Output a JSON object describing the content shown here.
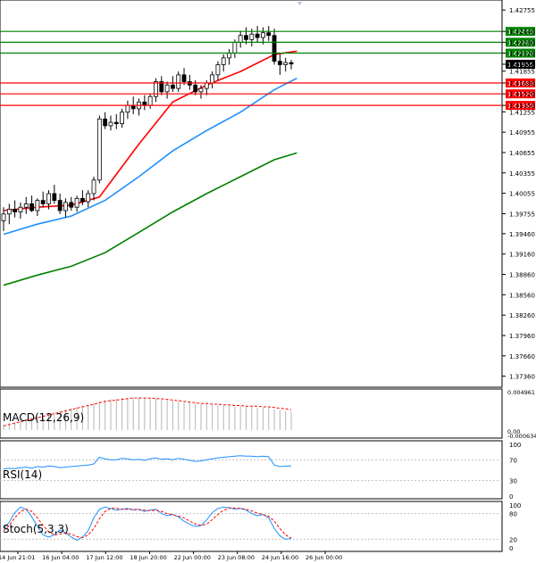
{
  "chart_data": {
    "type": "candlestick",
    "title": "",
    "price_axis": {
      "ticks": [
        "1.42755",
        "1.42440",
        "1.42280",
        "1.42120",
        "1.41956",
        "1.41855",
        "1.41680",
        "1.41520",
        "1.41350",
        "1.41255",
        "1.40955",
        "1.40655",
        "1.40355",
        "1.40055",
        "1.39755",
        "1.39460",
        "1.39160",
        "1.38860",
        "1.38560",
        "1.38260",
        "1.37960",
        "1.37660",
        "1.37360"
      ],
      "range": [
        1.3725,
        1.4285
      ]
    },
    "time_axis": {
      "labels": [
        "14 Jun 21:01",
        "16 Jun 04:00",
        "17 Jun 12:00",
        "18 Jun 20:00",
        "22 Jun 00:00",
        "23 Jun 08:00",
        "24 Jun 16:00",
        "26 Jun 00:00"
      ]
    },
    "candles": [
      [
        1.3965,
        1.3985,
        1.395,
        1.3975
      ],
      [
        1.3975,
        1.399,
        1.396,
        1.3982
      ],
      [
        1.3982,
        1.3995,
        1.397,
        1.3978
      ],
      [
        1.3978,
        1.3992,
        1.3968,
        1.3985
      ],
      [
        1.3985,
        1.4,
        1.3975,
        1.399
      ],
      [
        1.399,
        1.4002,
        1.3978,
        1.398
      ],
      [
        1.398,
        1.3998,
        1.3972,
        1.3995
      ],
      [
        1.3995,
        1.4008,
        1.3985,
        1.399
      ],
      [
        1.399,
        1.401,
        1.3982,
        1.4005
      ],
      [
        1.4005,
        1.4018,
        1.399,
        1.3995
      ],
      [
        1.3995,
        1.4005,
        1.3975,
        1.398
      ],
      [
        1.398,
        1.3998,
        1.397,
        1.3992
      ],
      [
        1.3992,
        1.4,
        1.398,
        1.3985
      ],
      [
        1.3985,
        1.4002,
        1.3978,
        1.3998
      ],
      [
        1.3998,
        1.401,
        1.3988,
        1.3993
      ],
      [
        1.3993,
        1.401,
        1.3985,
        1.4005
      ],
      [
        1.4005,
        1.403,
        1.3995,
        1.4025
      ],
      [
        1.4025,
        1.412,
        1.402,
        1.4115
      ],
      [
        1.4115,
        1.4125,
        1.41,
        1.4105
      ],
      [
        1.4105,
        1.412,
        1.4098,
        1.411
      ],
      [
        1.411,
        1.4122,
        1.41,
        1.4108
      ],
      [
        1.4108,
        1.413,
        1.4102,
        1.4125
      ],
      [
        1.4125,
        1.4142,
        1.4115,
        1.4135
      ],
      [
        1.4135,
        1.4148,
        1.4122,
        1.413
      ],
      [
        1.413,
        1.4145,
        1.412,
        1.414
      ],
      [
        1.414,
        1.415,
        1.4128,
        1.4135
      ],
      [
        1.4135,
        1.4152,
        1.413,
        1.4148
      ],
      [
        1.4148,
        1.4175,
        1.414,
        1.417
      ],
      [
        1.417,
        1.4178,
        1.415,
        1.4155
      ],
      [
        1.4155,
        1.417,
        1.4145,
        1.4165
      ],
      [
        1.4165,
        1.4178,
        1.4155,
        1.416
      ],
      [
        1.416,
        1.4185,
        1.4155,
        1.418
      ],
      [
        1.418,
        1.419,
        1.4165,
        1.417
      ],
      [
        1.417,
        1.418,
        1.4158,
        1.4165
      ],
      [
        1.4165,
        1.4172,
        1.415,
        1.4155
      ],
      [
        1.4155,
        1.4165,
        1.4145,
        1.416
      ],
      [
        1.416,
        1.4172,
        1.415,
        1.4168
      ],
      [
        1.4168,
        1.4185,
        1.416,
        1.418
      ],
      [
        1.418,
        1.42,
        1.4172,
        1.4195
      ],
      [
        1.4195,
        1.421,
        1.4185,
        1.4205
      ],
      [
        1.4205,
        1.4218,
        1.4195,
        1.4212
      ],
      [
        1.4212,
        1.4232,
        1.4205,
        1.4228
      ],
      [
        1.4228,
        1.4245,
        1.422,
        1.4238
      ],
      [
        1.4238,
        1.425,
        1.4225,
        1.4232
      ],
      [
        1.4232,
        1.4248,
        1.4222,
        1.424
      ],
      [
        1.424,
        1.4252,
        1.4228,
        1.4235
      ],
      [
        1.4235,
        1.425,
        1.4225,
        1.4242
      ],
      [
        1.4242,
        1.4252,
        1.423,
        1.4238
      ],
      [
        1.4238,
        1.4248,
        1.4195,
        1.42
      ],
      [
        1.42,
        1.421,
        1.418,
        1.4195
      ],
      [
        1.4195,
        1.4205,
        1.4185,
        1.4198
      ],
      [
        1.4198,
        1.4202,
        1.4188,
        1.4196
      ]
    ],
    "moving_averages": [
      {
        "color": "#ff0000",
        "points": [
          [
            0,
            1.398
          ],
          [
            6,
            1.3985
          ],
          [
            12,
            1.3988
          ],
          [
            17,
            1.4
          ],
          [
            24,
            1.4078
          ],
          [
            30,
            1.414
          ],
          [
            36,
            1.4165
          ],
          [
            42,
            1.4185
          ],
          [
            48,
            1.421
          ],
          [
            52,
            1.4215
          ]
        ]
      },
      {
        "color": "#1e90ff",
        "points": [
          [
            0,
            1.3945
          ],
          [
            6,
            1.396
          ],
          [
            12,
            1.3972
          ],
          [
            18,
            1.3995
          ],
          [
            24,
            1.403
          ],
          [
            30,
            1.4068
          ],
          [
            36,
            1.4098
          ],
          [
            42,
            1.4125
          ],
          [
            48,
            1.4158
          ],
          [
            52,
            1.4175
          ]
        ]
      },
      {
        "color": "#008000",
        "points": [
          [
            0,
            1.387
          ],
          [
            6,
            1.3885
          ],
          [
            12,
            1.3898
          ],
          [
            18,
            1.3918
          ],
          [
            24,
            1.3948
          ],
          [
            30,
            1.3978
          ],
          [
            36,
            1.4005
          ],
          [
            42,
            1.403
          ],
          [
            48,
            1.4055
          ],
          [
            52,
            1.4065
          ]
        ]
      }
    ],
    "levels": [
      {
        "price": 1.4244,
        "label": "1.42440",
        "color": "#008000"
      },
      {
        "price": 1.4228,
        "label": "1.42280",
        "color": "#008000"
      },
      {
        "price": 1.4212,
        "label": "1.42120",
        "color": "#008000"
      },
      {
        "price": 1.4168,
        "label": "1.41680",
        "color": "#ff0000"
      },
      {
        "price": 1.4152,
        "label": "1.41520",
        "color": "#ff0000"
      },
      {
        "price": 1.4135,
        "label": "1.41350",
        "color": "#ff0000"
      }
    ],
    "current_price": {
      "price": 1.41956,
      "label": "1.41956"
    },
    "macd": {
      "label": "MACD(12,26,9)",
      "ticks": [
        "0.004961",
        "0.00",
        "-0.000634"
      ],
      "range": [
        -0.0008,
        0.0055
      ],
      "histogram": [
        0.0008,
        0.001,
        0.0012,
        0.0014,
        0.0016,
        0.0018,
        0.002,
        0.0022,
        0.0024,
        0.0026,
        0.0028,
        0.003,
        0.0032,
        0.0034,
        0.0036,
        0.0038,
        0.004,
        0.0042,
        0.0044,
        0.0045,
        0.0046,
        0.0047,
        0.0047,
        0.0048,
        0.0048,
        0.0048,
        0.0047,
        0.0046,
        0.0045,
        0.0044,
        0.0043,
        0.0042,
        0.0041,
        0.004,
        0.0039,
        0.0038,
        0.0038,
        0.0037,
        0.0037,
        0.0036,
        0.0036,
        0.0035,
        0.0035,
        0.0034,
        0.0034,
        0.0033,
        0.0033,
        0.0032,
        0.003,
        0.0029,
        0.0028,
        0.0027
      ],
      "signal": [
        0.0006,
        0.0008,
        0.001,
        0.0012,
        0.0014,
        0.0016,
        0.0018,
        0.002,
        0.0022,
        0.0024,
        0.0026,
        0.0028,
        0.003,
        0.0032,
        0.0034,
        0.0036,
        0.0038,
        0.004,
        0.0042,
        0.0043,
        0.0044,
        0.0045,
        0.0046,
        0.0047,
        0.0047,
        0.0047,
        0.0047,
        0.0046,
        0.0046,
        0.0045,
        0.0044,
        0.0043,
        0.0042,
        0.0041,
        0.004,
        0.0039,
        0.0039,
        0.0038,
        0.0038,
        0.0037,
        0.0037,
        0.0036,
        0.0036,
        0.0035,
        0.0035,
        0.0035,
        0.0034,
        0.0034,
        0.0033,
        0.0032,
        0.0031,
        0.003
      ]
    },
    "rsi": {
      "label": "RSI(14)",
      "ticks": [
        "100",
        "70",
        "30",
        "0"
      ],
      "range": [
        0,
        100
      ],
      "values": [
        52,
        54,
        53,
        55,
        56,
        54,
        57,
        56,
        58,
        57,
        55,
        56,
        57,
        58,
        59,
        60,
        62,
        75,
        72,
        70,
        70,
        73,
        72,
        70,
        71,
        69,
        72,
        74,
        71,
        72,
        70,
        73,
        71,
        69,
        67,
        68,
        70,
        72,
        74,
        75,
        76,
        77,
        78,
        77,
        77,
        76,
        77,
        76,
        60,
        57,
        58,
        58
      ]
    },
    "stochastic": {
      "label": "Stoch(5,3,3)",
      "ticks": [
        "100",
        "80",
        "20",
        "0"
      ],
      "range": [
        0,
        100
      ],
      "k": [
        45,
        60,
        82,
        95,
        90,
        72,
        50,
        30,
        25,
        30,
        42,
        35,
        25,
        18,
        25,
        40,
        70,
        90,
        95,
        92,
        88,
        90,
        92,
        88,
        90,
        85,
        88,
        90,
        80,
        75,
        78,
        72,
        62,
        55,
        50,
        52,
        65,
        82,
        92,
        95,
        94,
        90,
        92,
        88,
        80,
        75,
        78,
        70,
        45,
        28,
        20,
        22
      ],
      "d": [
        40,
        52,
        70,
        85,
        90,
        85,
        70,
        52,
        38,
        30,
        32,
        35,
        32,
        26,
        24,
        30,
        45,
        68,
        85,
        92,
        92,
        90,
        90,
        90,
        89,
        88,
        87,
        88,
        85,
        80,
        77,
        74,
        70,
        62,
        56,
        52,
        55,
        66,
        78,
        88,
        93,
        93,
        92,
        90,
        86,
        81,
        78,
        74,
        62,
        45,
        30,
        23
      ]
    }
  }
}
